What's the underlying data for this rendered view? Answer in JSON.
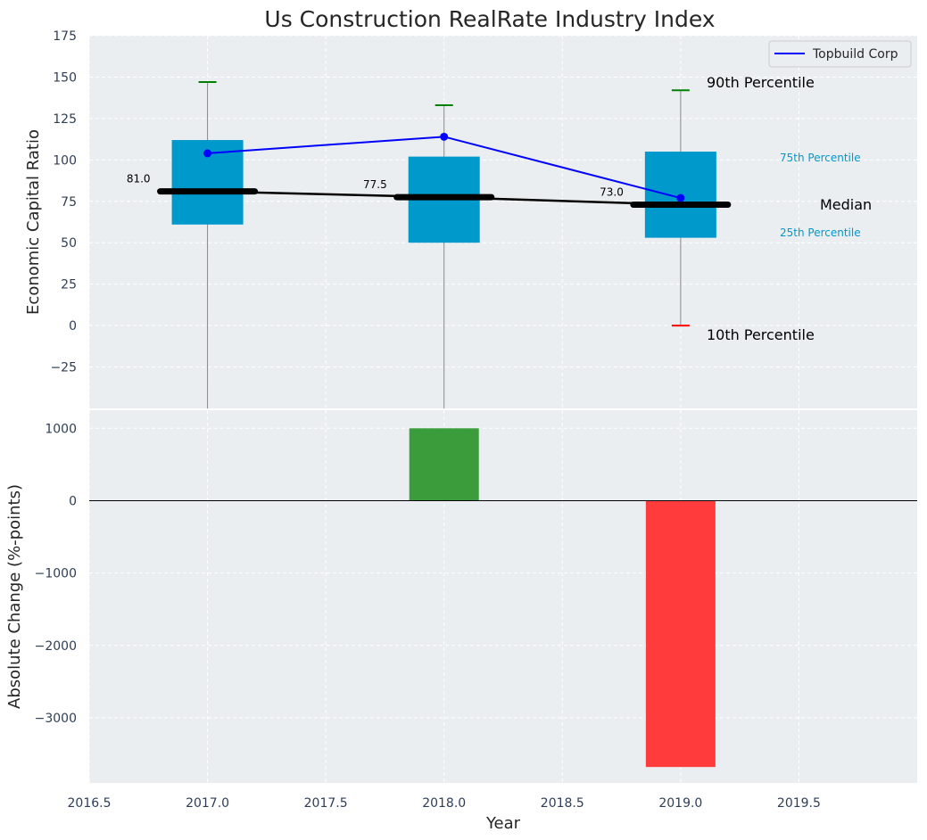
{
  "chart_data": [
    {
      "type": "box",
      "title": "Us Construction RealRate Industry Index",
      "ylabel": "Economic Capital Ratio",
      "xlim": [
        2016.5,
        2020.0
      ],
      "ylim": [
        -50,
        175
      ],
      "xticks": [
        2016.5,
        2017.0,
        2017.5,
        2018.0,
        2018.5,
        2019.0,
        2019.5
      ],
      "xtick_labels": [
        "2016.5",
        "2017.0",
        "2017.5",
        "2018.0",
        "2018.5",
        "2019.0",
        "2019.5"
      ],
      "yticks": [
        -25,
        0,
        25,
        50,
        75,
        100,
        125,
        150,
        175
      ],
      "ytick_labels": [
        "−25",
        "0",
        "25",
        "50",
        "75",
        "100",
        "125",
        "150",
        "175"
      ],
      "grid": true,
      "boxes": [
        {
          "x": 2017.0,
          "p10": -50,
          "p25": 61,
          "median": 81,
          "p75": 112,
          "p90": 147
        },
        {
          "x": 2018.0,
          "p10": -50,
          "p25": 50,
          "median": 77.5,
          "p75": 102,
          "p90": 133
        },
        {
          "x": 2019.0,
          "p10": 0,
          "p25": 53,
          "median": 73,
          "p75": 105,
          "p90": 142
        }
      ],
      "median_labels": [
        "81.0",
        "77.5",
        "73.0"
      ],
      "series": [
        {
          "name": "Topbuild Corp",
          "x": [
            2017.0,
            2018.0,
            2019.0
          ],
          "values": [
            104,
            114,
            77
          ]
        }
      ],
      "legend": {
        "position": "top-right"
      },
      "annotations": {
        "p90": "90th Percentile",
        "p75": "75th Percentile",
        "median": "Median",
        "p25": "25th Percentile",
        "p10": "10th Percentile"
      },
      "colors": {
        "box": "#0099cc",
        "line": "#0000ff",
        "median": "#000000",
        "p90_cap": "#008000",
        "p10_cap": "#ff0000"
      }
    },
    {
      "type": "bar",
      "ylabel": "Absolute Change (%-points)",
      "xlabel": "Year",
      "xlim": [
        2016.5,
        2020.0
      ],
      "ylim": [
        -3900,
        1250
      ],
      "yticks": [
        -3000,
        -2000,
        -1000,
        0,
        1000
      ],
      "ytick_labels": [
        "−3000",
        "−2000",
        "−1000",
        "0",
        "1000"
      ],
      "x": [
        2018.0,
        2019.0
      ],
      "values": [
        1000,
        -3680
      ],
      "colors": {
        "positive": "#3a9c3a",
        "negative": "#ff3b3b"
      }
    }
  ]
}
